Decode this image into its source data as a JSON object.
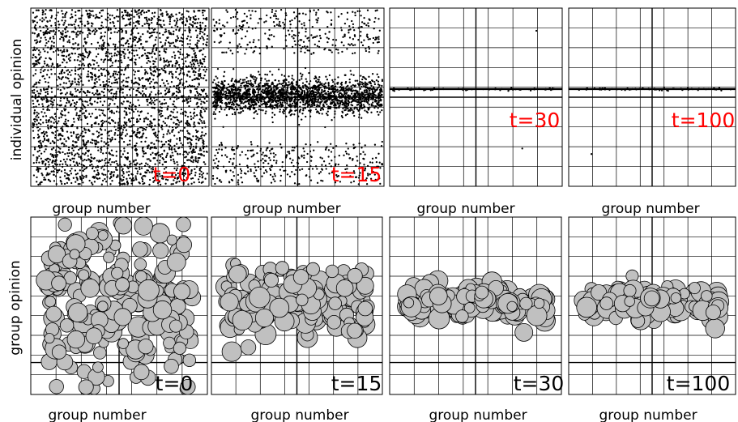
{
  "figure": {
    "row_labels": [
      "individual opinion",
      "group opinion"
    ]
  },
  "chart_data": [
    {
      "type": "scatter",
      "row": 0,
      "t_label": "t=0",
      "xlabel": "group number",
      "ylabel": "individual opinion",
      "spread": 1.0,
      "core": 0.0,
      "n_points": 3000,
      "t_color": "#ff0000"
    },
    {
      "type": "scatter",
      "row": 0,
      "t_label": "t=15",
      "xlabel": "group number",
      "ylabel": "",
      "spread": 0.11,
      "core": 0.75,
      "n_points": 2600,
      "t_color": "#ff0000"
    },
    {
      "type": "scatter",
      "row": 0,
      "t_label": "t=30",
      "xlabel": "group number",
      "ylabel": "",
      "spread": 0.0,
      "core": 0.97,
      "n_points": 60,
      "t_color": "#ff0000"
    },
    {
      "type": "scatter",
      "row": 0,
      "t_label": "t=100",
      "xlabel": "group number",
      "ylabel": "",
      "spread": 0.0,
      "core": 0.98,
      "n_points": 60,
      "t_color": "#ff0000"
    },
    {
      "type": "scatter",
      "row": 1,
      "t_label": "t=0",
      "xlabel": "group number",
      "ylabel": "group opinion",
      "spread": 0.42,
      "n_bubbles": 220,
      "bubble_color": "#c0c0c0",
      "t_color": "#000000"
    },
    {
      "type": "scatter",
      "row": 1,
      "t_label": "t=15",
      "xlabel": "group number",
      "ylabel": "",
      "spread": 0.2,
      "n_bubbles": 200,
      "bubble_color": "#c0c0c0",
      "t_color": "#000000"
    },
    {
      "type": "scatter",
      "row": 1,
      "t_label": "t=30",
      "xlabel": "group number",
      "ylabel": "",
      "spread": 0.08,
      "n_bubbles": 180,
      "bubble_color": "#c0c0c0",
      "t_color": "#000000"
    },
    {
      "type": "scatter",
      "row": 1,
      "t_label": "t=100",
      "xlabel": "group number",
      "ylabel": "",
      "spread": 0.08,
      "n_bubbles": 180,
      "bubble_color": "#c0c0c0",
      "t_color": "#000000"
    }
  ]
}
